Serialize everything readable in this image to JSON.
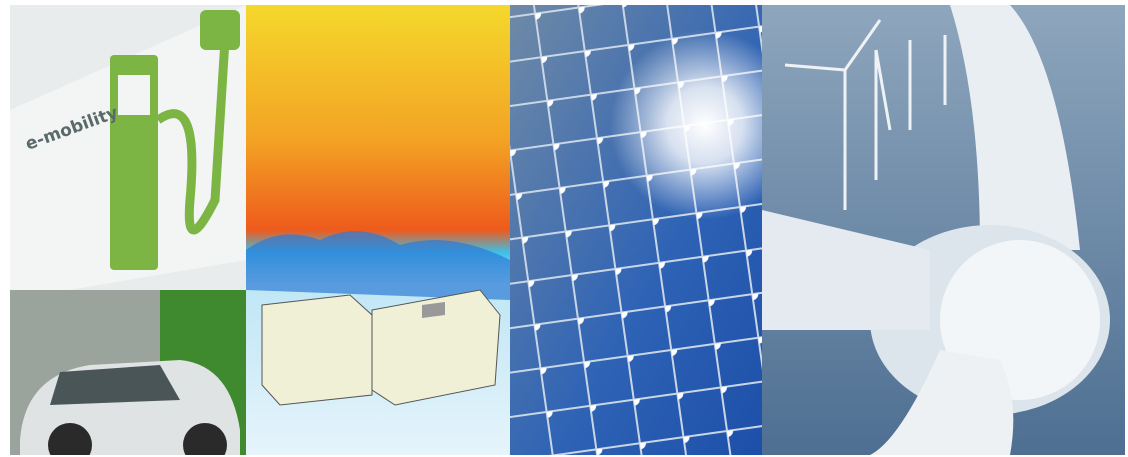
{
  "image": {
    "sign_text": "e-mobility"
  }
}
